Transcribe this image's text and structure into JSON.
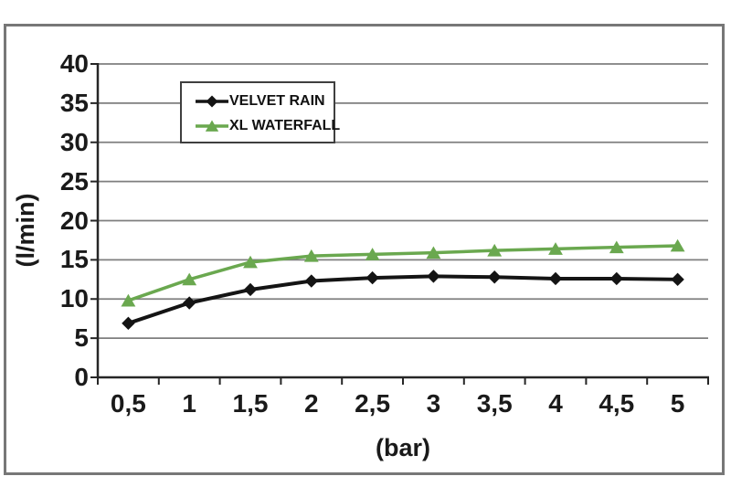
{
  "chart_data": {
    "type": "line",
    "title": "",
    "xlabel": "(bar)",
    "ylabel": "(l/min)",
    "categories": [
      "0,5",
      "1",
      "1,5",
      "2",
      "2,5",
      "3",
      "3,5",
      "4",
      "4,5",
      "5"
    ],
    "x_values": [
      0.5,
      1,
      1.5,
      2,
      2.5,
      3,
      3.5,
      4,
      4.5,
      5
    ],
    "series": [
      {
        "name": "VELVET RAIN",
        "color": "#141414",
        "marker": "diamond",
        "values": [
          6.9,
          9.5,
          11.2,
          12.3,
          12.7,
          12.9,
          12.8,
          12.6,
          12.6,
          12.5
        ]
      },
      {
        "name": "XL WATERFALL",
        "color": "#6aa84f",
        "marker": "triangle",
        "values": [
          9.8,
          12.5,
          14.7,
          15.5,
          15.7,
          15.9,
          16.2,
          16.4,
          16.6,
          16.8
        ]
      }
    ],
    "ylim": [
      0,
      40
    ],
    "yticks": [
      0,
      5,
      10,
      15,
      20,
      25,
      30,
      35,
      40
    ],
    "ytick_labels": [
      "0",
      "5",
      "10",
      "15",
      "20",
      "25",
      "30",
      "35",
      "40"
    ],
    "grid": true,
    "gridline_color": "#7f7f7f",
    "axis_color": "#262626",
    "legend_position": "top-left-inside",
    "legend_border_color": "#3f3f3f"
  }
}
